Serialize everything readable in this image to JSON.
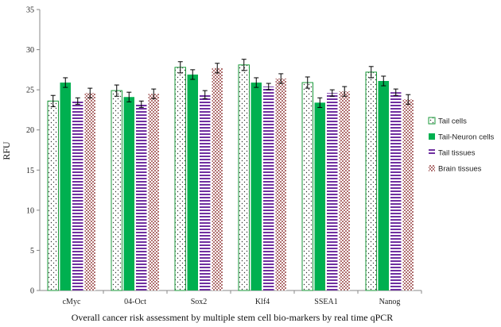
{
  "chart_data": {
    "type": "bar",
    "title": "",
    "xlabel": "Overall cancer risk assessment by multiple stem cell bio-markers by real time qPCR",
    "ylabel": "RFU",
    "ylim": [
      0,
      35
    ],
    "yticks": [
      0,
      5,
      10,
      15,
      20,
      25,
      30,
      35
    ],
    "grid": false,
    "legend_position": "right",
    "categories": [
      "cMyc",
      "04-Oct",
      "Sox2",
      "Klf4",
      "SSEA1",
      "Nanog"
    ],
    "series": [
      {
        "name": "Tail cells",
        "pattern": "dots",
        "color": "#1a9a3a",
        "values": [
          23.6,
          24.9,
          27.8,
          28.1,
          25.9,
          27.2
        ],
        "errors": [
          0.7,
          0.7,
          0.7,
          0.7,
          0.7,
          0.7
        ]
      },
      {
        "name": "Tail-Neuron cells",
        "pattern": "solid",
        "color": "#00b050",
        "values": [
          25.9,
          24.1,
          26.9,
          25.9,
          23.4,
          26.1
        ],
        "errors": [
          0.6,
          0.6,
          0.6,
          0.6,
          0.6,
          0.6
        ]
      },
      {
        "name": "Tail tissues",
        "pattern": "hstripes",
        "color": "#7030a0",
        "values": [
          23.6,
          23.2,
          24.4,
          25.4,
          24.6,
          24.7
        ],
        "errors": [
          0.4,
          0.4,
          0.5,
          0.4,
          0.4,
          0.4
        ]
      },
      {
        "name": "Brain tissues",
        "pattern": "checker",
        "color": "#b07070",
        "values": [
          24.6,
          24.5,
          27.7,
          26.4,
          24.8,
          23.8
        ],
        "errors": [
          0.6,
          0.6,
          0.6,
          0.6,
          0.6,
          0.6
        ]
      }
    ]
  }
}
